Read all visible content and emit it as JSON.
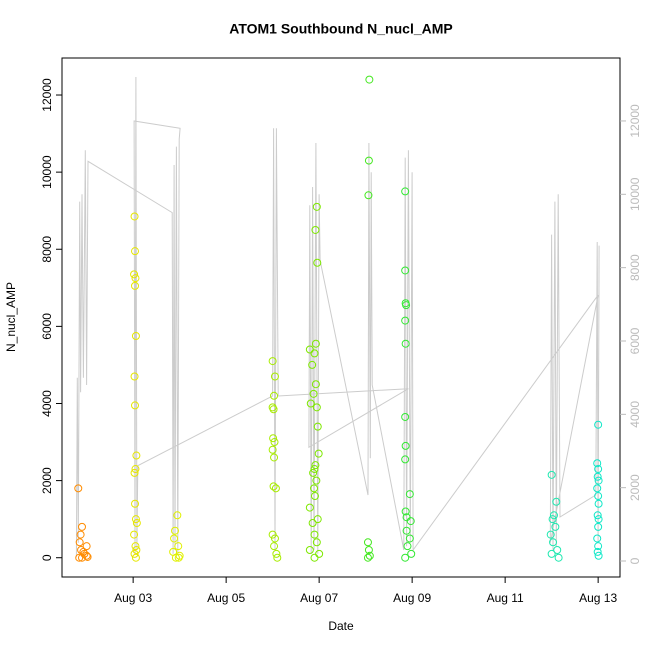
{
  "chart_data": {
    "type": "scatter",
    "title": "ATOM1 Southbound N_nucl_AMP",
    "x_label": "Date",
    "y_label": "N_nucl_AMP",
    "xlim": [
      1.47,
      13.47
    ],
    "xticks": [
      {
        "value": 3,
        "label": "Aug 03"
      },
      {
        "value": 5,
        "label": "Aug 05"
      },
      {
        "value": 7,
        "label": "Aug 07"
      },
      {
        "value": 9,
        "label": "Aug 09"
      },
      {
        "value": 11,
        "label": "Aug 11"
      },
      {
        "value": 13,
        "label": "Aug 13"
      }
    ],
    "ylim": [
      -500,
      12960
    ],
    "yticks": [
      0,
      2000,
      4000,
      6000,
      8000,
      10000,
      12000
    ],
    "y2lim": [
      -436,
      13717
    ],
    "y2ticks": [
      0,
      2000,
      4000,
      6000,
      8000,
      10000,
      12000
    ],
    "y2color": "#bbbbbb",
    "series": [
      {
        "type": "line",
        "axis": "y2",
        "color": "#cccccc",
        "x": [
          1.78,
          1.8,
          1.82,
          1.85,
          1.87,
          1.9,
          1.93,
          1.97,
          2.0,
          2.03,
          3.84,
          3.86,
          3.88,
          3.9,
          3.93,
          3.96,
          3.99,
          4.01,
          3.02,
          3.04,
          3.06,
          3.08,
          3.1,
          6.0,
          6.02,
          6.05,
          6.08,
          6.12,
          8.92,
          6.78,
          6.8,
          6.83,
          6.86,
          6.89,
          6.93,
          6.97,
          7.0,
          7.02,
          8.05,
          8.07,
          8.1,
          8.12,
          8.14,
          8.82,
          8.85,
          8.88,
          8.92,
          8.96,
          9.0,
          9.02,
          13.0,
          11.97,
          12.0,
          12.03,
          12.07,
          12.1,
          12.14,
          12.18,
          12.95,
          12.98,
          13.0,
          13.02
        ],
        "values": [
          100,
          5000,
          500,
          9800,
          4600,
          10000,
          5000,
          11200,
          4800,
          10900,
          9500,
          200,
          10800,
          300,
          11300,
          200,
          11500,
          11800,
          12000,
          200,
          13200,
          300,
          2600,
          4500,
          11800,
          300,
          11800,
          4500,
          4700,
          3100,
          9700,
          200,
          10200,
          300,
          11400,
          200,
          10000,
          8200,
          1800,
          11400,
          2800,
          10600,
          4800,
          300,
          11000,
          400,
          11200,
          500,
          10600,
          300,
          7250,
          500,
          8900,
          300,
          9800,
          400,
          10000,
          1200,
          1800,
          8700,
          500,
          8600
        ]
      },
      {
        "color": "#ff8c00",
        "x": [
          1.82,
          1.9,
          1.85,
          1.88,
          1.95,
          2.0,
          1.84,
          1.9,
          2.0,
          1.87,
          1.93,
          2.02
        ],
        "values": [
          1800,
          800,
          400,
          200,
          100,
          50,
          0,
          0,
          300,
          600,
          150,
          20
        ]
      },
      {
        "color": "#e6e600",
        "x": [
          3.03,
          3.04,
          3.02,
          3.05,
          3.04,
          3.06,
          3.03,
          3.04,
          3.07,
          3.05,
          3.03,
          3.04,
          3.06,
          3.08,
          3.02,
          3.05,
          3.07,
          3.03,
          3.06
        ],
        "values": [
          8850,
          7950,
          7350,
          7250,
          7050,
          5750,
          4700,
          3950,
          2650,
          2300,
          2200,
          1400,
          1000,
          900,
          600,
          300,
          200,
          100,
          0
        ]
      },
      {
        "color": "#e0f000",
        "x": [
          3.95,
          3.9,
          3.88,
          3.97,
          3.86,
          4.0,
          3.92,
          3.98
        ],
        "values": [
          1100,
          700,
          500,
          300,
          150,
          50,
          0,
          0
        ]
      },
      {
        "color": "#a8ec00",
        "x": [
          6.0,
          6.05,
          6.03,
          6.0,
          6.02,
          6.01,
          6.04,
          6.0,
          6.03,
          6.02,
          6.07,
          6.0,
          6.05,
          6.03,
          6.08,
          6.1
        ],
        "values": [
          5100,
          4700,
          4200,
          3900,
          3850,
          3100,
          3000,
          2800,
          2600,
          1850,
          1800,
          600,
          500,
          300,
          100,
          0
        ]
      },
      {
        "color": "#7ee800",
        "x": [
          6.95,
          6.92,
          6.96,
          6.93,
          6.8,
          6.9,
          6.85,
          6.93,
          6.88,
          6.82,
          6.95,
          6.97,
          6.99,
          6.92,
          6.9,
          6.87,
          6.94,
          6.89,
          6.91,
          6.8,
          6.97,
          6.86,
          6.9,
          6.95,
          6.8,
          7.0,
          6.9
        ],
        "values": [
          9100,
          8500,
          7650,
          5550,
          5400,
          5300,
          5000,
          4500,
          4250,
          4000,
          3900,
          3400,
          2700,
          2400,
          2300,
          2200,
          2000,
          1800,
          1600,
          1300,
          1000,
          900,
          600,
          400,
          200,
          100,
          0
        ]
      },
      {
        "color": "#44e820",
        "x": [
          8.08,
          8.07,
          8.06,
          8.05,
          8.07,
          8.09,
          8.05
        ],
        "values": [
          12400,
          10300,
          9400,
          400,
          200,
          50,
          0
        ]
      },
      {
        "color": "#33e833",
        "x": [
          8.85,
          8.85,
          8.86,
          8.87,
          8.85,
          8.86,
          8.85,
          8.86,
          8.85,
          8.95,
          8.86,
          8.88,
          8.97,
          8.88,
          8.95,
          8.9,
          8.98,
          8.85
        ],
        "values": [
          9500,
          7450,
          6600,
          6550,
          6150,
          5550,
          3650,
          2900,
          2550,
          1650,
          1200,
          1050,
          950,
          700,
          500,
          300,
          100,
          0
        ]
      },
      {
        "color": "#20e8b0",
        "x": [
          12.0,
          12.1,
          12.05,
          12.02,
          12.08,
          11.98,
          12.03,
          12.12,
          12.0,
          12.15
        ],
        "values": [
          2150,
          1450,
          1100,
          1000,
          800,
          600,
          400,
          200,
          100,
          0
        ]
      },
      {
        "color": "#10e8c8",
        "x": [
          13.0,
          12.98,
          13.0,
          12.99,
          13.01,
          12.98,
          13.0,
          13.01,
          12.99,
          13.01,
          13.0,
          12.98,
          13.0,
          12.99,
          13.01
        ],
        "values": [
          3450,
          2450,
          2300,
          2100,
          2000,
          1800,
          1600,
          1400,
          1100,
          1000,
          800,
          500,
          300,
          150,
          50
        ]
      }
    ]
  }
}
